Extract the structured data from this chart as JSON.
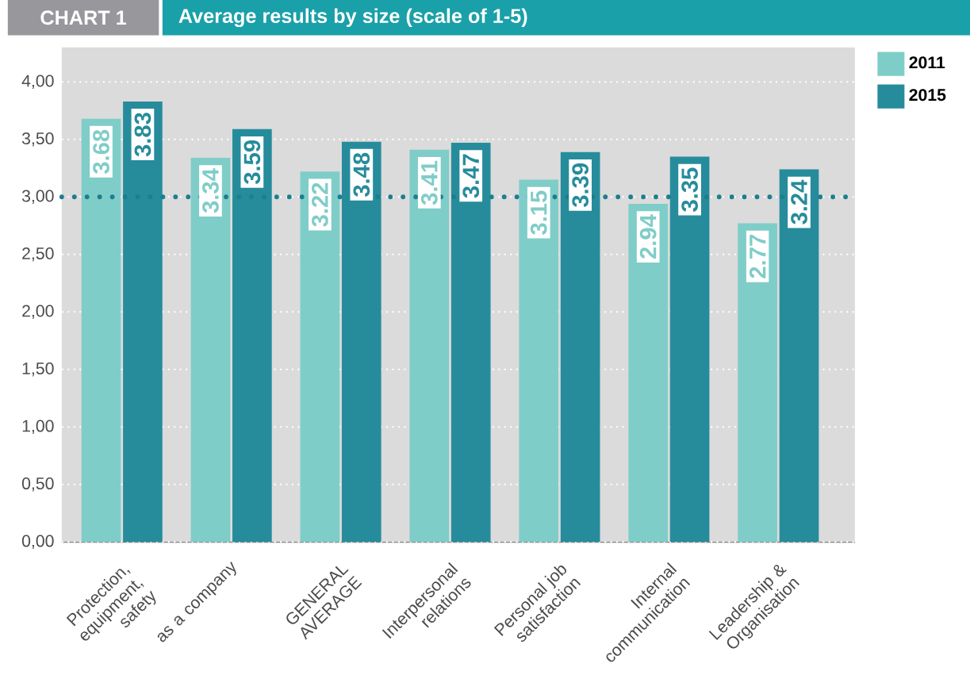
{
  "chart_data": {
    "type": "bar",
    "title": "Average results by size (scale of 1-5)",
    "annotations": [
      "CHART 1"
    ],
    "categories": [
      "Protection, equipment, safety",
      "as a company",
      "GENERAL AVERAGE",
      "Interpersonal relations",
      "Personal job satisfaction",
      "Internal communication",
      "Leadership & Organisation"
    ],
    "series": [
      {
        "name": "2011",
        "color": "#7fcdc8",
        "values": [
          3.68,
          3.34,
          3.22,
          3.41,
          3.15,
          2.94,
          2.77
        ]
      },
      {
        "name": "2015",
        "color": "#268c9c",
        "values": [
          3.83,
          3.59,
          3.48,
          3.47,
          3.39,
          3.35,
          3.24
        ]
      }
    ],
    "ylim": [
      0,
      4.3
    ],
    "yticks": [
      {
        "value": 0,
        "label": "0,00"
      },
      {
        "value": 0.5,
        "label": "0,50"
      },
      {
        "value": 1,
        "label": "1,00"
      },
      {
        "value": 1.5,
        "label": "1,50"
      },
      {
        "value": 2,
        "label": "2,00"
      },
      {
        "value": 2.5,
        "label": "2,50"
      },
      {
        "value": 3,
        "label": "3,00"
      },
      {
        "value": 3.5,
        "label": "3,50"
      },
      {
        "value": 4,
        "label": "4,00"
      }
    ],
    "grid": "y",
    "legend": "top right",
    "data_labels": true,
    "ref_lines": [
      {
        "axis": "y",
        "value": 3,
        "color": "#1a7f8e",
        "line_style": "dotted"
      }
    ]
  }
}
